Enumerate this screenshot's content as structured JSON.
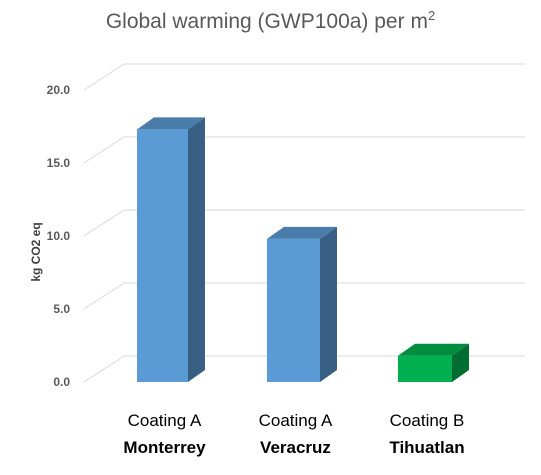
{
  "chart_data": {
    "type": "bar",
    "title": "Global warming (GWP100a) per m",
    "title_superscript": "2",
    "ylabel": "kg CO2 eq",
    "xlabel": "",
    "ylim": [
      0,
      20
    ],
    "yticks": [
      "0.0",
      "5.0",
      "10.0",
      "15.0",
      "20.0"
    ],
    "categories": [
      {
        "line1": "Coating A",
        "line2": "Monterrey"
      },
      {
        "line1": "Coating A",
        "line2": "Veracruz"
      },
      {
        "line1": "Coating B",
        "line2": "Tihuatlan"
      }
    ],
    "values": [
      17.3,
      9.8,
      1.8
    ],
    "colors": [
      "#5b9bd5",
      "#5b9bd5",
      "#00b050"
    ],
    "grid": true,
    "style": "3d-column"
  }
}
